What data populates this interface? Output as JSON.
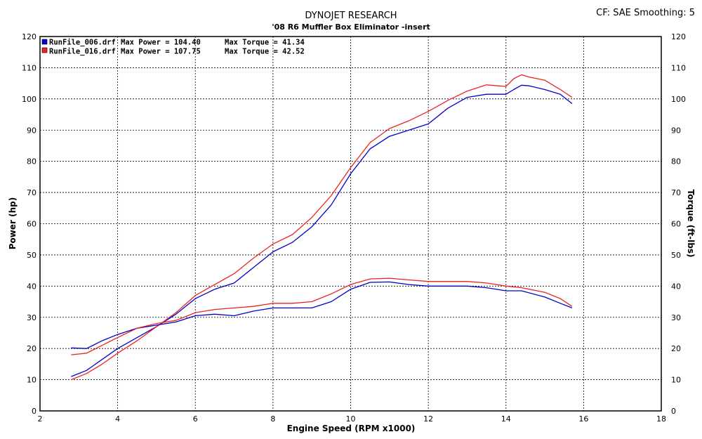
{
  "header": {
    "title": "DYNOJET RESEARCH",
    "subtitle": "'08 R6 Muffler Box Eliminator -insert",
    "settings": "CF: SAE  Smoothing: 5"
  },
  "chart_data": {
    "type": "line",
    "xlabel": "Engine Speed (RPM x1000)",
    "ylabel_left": "Power (hp)",
    "ylabel_right": "Torque (ft-lbs)",
    "xlim": [
      2,
      18
    ],
    "ylim": [
      0,
      120
    ],
    "x_ticks": [
      "2",
      "4",
      "6",
      "8",
      "10",
      "12",
      "14",
      "16",
      "18"
    ],
    "y_ticks": [
      "0",
      "10",
      "20",
      "30",
      "40",
      "50",
      "60",
      "70",
      "80",
      "90",
      "100",
      "110",
      "120"
    ],
    "grid": true,
    "legend_position": "top-left",
    "legend": [
      {
        "file": "RunFile_006.drf",
        "power_text": "Max Power = 104.40",
        "torque_text": "Max Torque = 41.34",
        "color": "#0000cc"
      },
      {
        "file": "RunFile_016.drf",
        "power_text": "Max Power = 107.75",
        "torque_text": "Max Torque = 42.52",
        "color": "#ee2222"
      }
    ],
    "series": [
      {
        "kind": "power",
        "color": "#0000cc",
        "x": [
          2.8,
          3.2,
          3.6,
          4.0,
          4.5,
          5.0,
          5.5,
          6.0,
          6.5,
          7.0,
          7.5,
          8.0,
          8.5,
          9.0,
          9.5,
          10.0,
          10.5,
          11.0,
          11.5,
          12.0,
          12.5,
          13.0,
          13.5,
          14.0,
          14.2,
          14.4,
          14.6,
          15.0,
          15.4,
          15.7
        ],
        "y": [
          11,
          13,
          16.5,
          20,
          23.5,
          27,
          31,
          36,
          39,
          41,
          46,
          51,
          54,
          59,
          66,
          76,
          84,
          88,
          90,
          92,
          97,
          100.5,
          101.5,
          101.5,
          103,
          104.4,
          104.2,
          103,
          101.5,
          98.5
        ]
      },
      {
        "kind": "power",
        "color": "#ee2222",
        "x": [
          2.8,
          3.2,
          3.6,
          4.0,
          4.5,
          5.0,
          5.5,
          6.0,
          6.5,
          7.0,
          7.5,
          8.0,
          8.5,
          9.0,
          9.5,
          10.0,
          10.5,
          11.0,
          11.5,
          12.0,
          12.5,
          13.0,
          13.5,
          14.0,
          14.2,
          14.4,
          14.6,
          15.0,
          15.4,
          15.7
        ],
        "y": [
          10,
          12,
          15,
          18.5,
          22.5,
          27,
          31.5,
          37,
          40.5,
          44,
          49,
          53.5,
          56.5,
          62,
          69,
          78,
          86,
          90.5,
          93,
          96,
          99.5,
          102.5,
          104.5,
          104,
          106.5,
          107.75,
          107,
          106,
          103,
          100.5
        ]
      },
      {
        "kind": "torque",
        "color": "#0000cc",
        "x": [
          2.8,
          3.2,
          3.6,
          4.0,
          4.5,
          5.0,
          5.5,
          6.0,
          6.5,
          7.0,
          7.5,
          8.0,
          8.5,
          9.0,
          9.5,
          10.0,
          10.5,
          11.0,
          11.5,
          12.0,
          12.5,
          13.0,
          13.5,
          14.0,
          14.4,
          15.0,
          15.4,
          15.7
        ],
        "y": [
          20.2,
          20,
          22.5,
          24.5,
          26.5,
          27.5,
          28.5,
          30.5,
          31,
          30.5,
          32,
          33,
          33,
          33,
          35,
          39,
          41.2,
          41.34,
          40.5,
          40,
          40,
          40,
          39.5,
          38.5,
          38.5,
          36.5,
          34.5,
          33
        ]
      },
      {
        "kind": "torque",
        "color": "#ee2222",
        "x": [
          2.8,
          3.2,
          3.6,
          4.0,
          4.5,
          5.0,
          5.5,
          6.0,
          6.5,
          7.0,
          7.5,
          8.0,
          8.5,
          9.0,
          9.5,
          10.0,
          10.5,
          11.0,
          11.5,
          12.0,
          12.5,
          13.0,
          13.5,
          14.0,
          14.4,
          15.0,
          15.4,
          15.7
        ],
        "y": [
          18,
          18.5,
          21,
          23.5,
          26.5,
          28,
          29,
          31.5,
          32.5,
          33,
          33.5,
          34.5,
          34.5,
          35,
          37.5,
          40.5,
          42.3,
          42.52,
          42,
          41.5,
          41.5,
          41.5,
          41,
          40,
          39.5,
          38,
          36,
          33.5
        ]
      }
    ]
  }
}
